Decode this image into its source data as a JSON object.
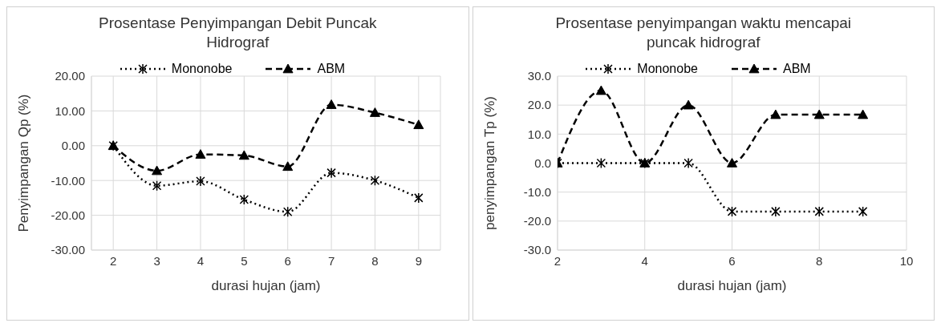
{
  "chart_data": [
    {
      "type": "line",
      "title": "Prosentase Penyimpangan Debit Puncak Hidrograf",
      "xlabel": "durasi hujan (jam)",
      "ylabel": "Penyimpangan Qp (%)",
      "categories": [
        "2",
        "3",
        "4",
        "5",
        "6",
        "7",
        "8",
        "9"
      ],
      "series": [
        {
          "name": "Mononobe",
          "color": "#000000",
          "marker": "cross",
          "line_style": "dotted",
          "values": [
            0,
            -11.5,
            -10.2,
            -15.5,
            -19,
            -7.8,
            -10,
            -15
          ]
        },
        {
          "name": "ABM",
          "color": "#000000",
          "marker": "triangle",
          "line_style": "dashed",
          "values": [
            0,
            -7.2,
            -2.5,
            -2.8,
            -6,
            11.8,
            9.5,
            6
          ]
        }
      ],
      "ylim": [
        -30,
        20
      ],
      "yticks": [
        {
          "value": -30,
          "label": "-30.00"
        },
        {
          "value": -20,
          "label": "-20.00"
        },
        {
          "value": -10,
          "label": "-10.00"
        },
        {
          "value": 0,
          "label": "0.00"
        },
        {
          "value": 10,
          "label": "10.00"
        },
        {
          "value": 20,
          "label": "20.00"
        }
      ],
      "grid": true,
      "legend": "top"
    },
    {
      "type": "line",
      "title": "Prosentase penyimpangan waktu mencapai puncak hidrograf",
      "xlabel": "durasi hujan (jam)",
      "ylabel": "penyimpangan Tp (%)",
      "x": [
        2,
        3,
        4,
        5,
        6,
        7,
        8,
        9
      ],
      "series": [
        {
          "name": "Mononobe",
          "color": "#000000",
          "marker": "cross",
          "line_style": "dotted",
          "values": [
            0,
            0,
            0,
            0,
            -16.7,
            -16.7,
            -16.7,
            -16.7
          ]
        },
        {
          "name": "ABM",
          "color": "#000000",
          "marker": "triangle",
          "line_style": "dashed",
          "values": [
            0,
            25,
            0,
            20,
            0,
            16.7,
            16.7,
            16.7
          ]
        }
      ],
      "xlim": [
        2,
        10
      ],
      "xticks": [
        2,
        4,
        6,
        8,
        10
      ],
      "ylim": [
        -30,
        30
      ],
      "yticks": [
        {
          "value": -30,
          "label": "-30.0"
        },
        {
          "value": -20,
          "label": "-20.0"
        },
        {
          "value": -10,
          "label": "-10.0"
        },
        {
          "value": 0,
          "label": "0.0"
        },
        {
          "value": 10,
          "label": "10.0"
        },
        {
          "value": 20,
          "label": "20.0"
        },
        {
          "value": 30,
          "label": "30.0"
        }
      ],
      "grid": true,
      "legend": "top"
    }
  ]
}
